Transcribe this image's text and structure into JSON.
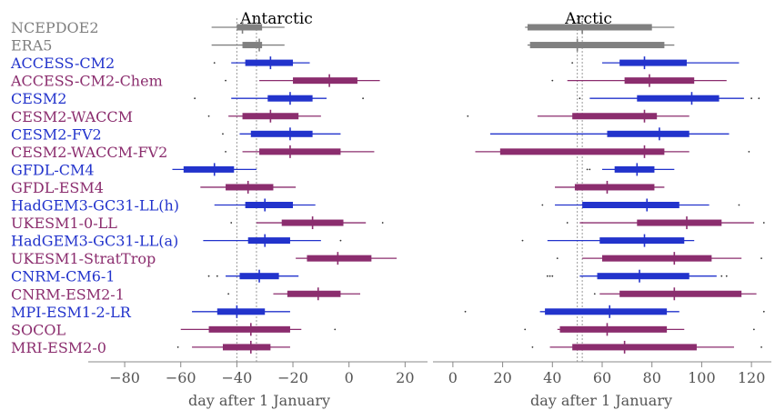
{
  "chart_data": {
    "type": "boxplot",
    "xlabel": "day after 1 January",
    "colors": {
      "reanalysis": "#808080",
      "blue": "#2233cc",
      "purple": "#8b2d6e",
      "axis": "#888888",
      "ref_line": "#999999"
    },
    "models": [
      {
        "name": "NCEPDOE2",
        "group": "reanalysis"
      },
      {
        "name": "ERA5",
        "group": "reanalysis"
      },
      {
        "name": "ACCESS-CM2",
        "group": "blue"
      },
      {
        "name": "ACCESS-CM2-Chem",
        "group": "purple"
      },
      {
        "name": "CESM2",
        "group": "blue"
      },
      {
        "name": "CESM2-WACCM",
        "group": "purple"
      },
      {
        "name": "CESM2-FV2",
        "group": "blue"
      },
      {
        "name": "CESM2-WACCM-FV2",
        "group": "purple"
      },
      {
        "name": "GFDL-CM4",
        "group": "blue"
      },
      {
        "name": "GFDL-ESM4",
        "group": "purple"
      },
      {
        "name": "HadGEM3-GC31-LL(h)",
        "group": "blue"
      },
      {
        "name": "UKESM1-0-LL",
        "group": "purple"
      },
      {
        "name": "HadGEM3-GC31-LL(a)",
        "group": "blue"
      },
      {
        "name": "UKESM1-StratTrop",
        "group": "purple"
      },
      {
        "name": "CNRM-CM6-1",
        "group": "blue"
      },
      {
        "name": "CNRM-ESM2-1",
        "group": "purple"
      },
      {
        "name": "MPI-ESM1-2-LR",
        "group": "blue"
      },
      {
        "name": "SOCOL",
        "group": "purple"
      },
      {
        "name": "MRI-ESM2-0",
        "group": "purple"
      }
    ],
    "panels": [
      {
        "title": "Antarctic",
        "xlim": [
          -93,
          28
        ],
        "xticks": [
          -80,
          -60,
          -40,
          -20,
          0,
          20
        ],
        "ref_lines": [
          -40,
          -33
        ],
        "boxes": [
          {
            "wlo": -49,
            "q1": -40,
            "median": -38,
            "q3": -31,
            "whi": -23,
            "outliers": []
          },
          {
            "wlo": -49,
            "q1": -38,
            "median": -32,
            "q3": -31,
            "whi": -23,
            "outliers": []
          },
          {
            "wlo": -42,
            "q1": -37,
            "median": -28,
            "q3": -20,
            "whi": -14,
            "outliers": [
              -48
            ]
          },
          {
            "wlo": -32,
            "q1": -20,
            "median": -7,
            "q3": 3,
            "whi": 11,
            "outliers": [
              -44
            ]
          },
          {
            "wlo": -42,
            "q1": -29,
            "median": -21,
            "q3": -13,
            "whi": -8,
            "outliers": [
              -55,
              5
            ]
          },
          {
            "wlo": -43,
            "q1": -38,
            "median": -28,
            "q3": -18,
            "whi": -10,
            "outliers": [
              -50
            ]
          },
          {
            "wlo": -39,
            "q1": -35,
            "median": -21,
            "q3": -13,
            "whi": -3,
            "outliers": [
              -45
            ]
          },
          {
            "wlo": -38,
            "q1": -32,
            "median": -21,
            "q3": -3,
            "whi": 9,
            "outliers": [
              -44
            ]
          },
          {
            "wlo": -63,
            "q1": -59,
            "median": -48,
            "q3": -41,
            "whi": -33,
            "outliers": []
          },
          {
            "wlo": -53,
            "q1": -44,
            "median": -36,
            "q3": -27,
            "whi": -19,
            "outliers": []
          },
          {
            "wlo": -48,
            "q1": -37,
            "median": -30,
            "q3": -20,
            "whi": -12,
            "outliers": []
          },
          {
            "wlo": -33,
            "q1": -24,
            "median": -13,
            "q3": -2,
            "whi": 6,
            "outliers": [
              -42,
              12
            ]
          },
          {
            "wlo": -52,
            "q1": -36,
            "median": -30,
            "q3": -21,
            "whi": -10,
            "outliers": [
              -3
            ]
          },
          {
            "wlo": -19,
            "q1": -15,
            "median": -4,
            "q3": 8,
            "whi": 17,
            "outliers": []
          },
          {
            "wlo": -44,
            "q1": -39,
            "median": -32,
            "q3": -25,
            "whi": -18,
            "outliers": [
              -50,
              -47
            ]
          },
          {
            "wlo": -27,
            "q1": -22,
            "median": -11,
            "q3": -3,
            "whi": 4,
            "outliers": [
              -43
            ]
          },
          {
            "wlo": -56,
            "q1": -47,
            "median": -40,
            "q3": -30,
            "whi": -21,
            "outliers": []
          },
          {
            "wlo": -60,
            "q1": -50,
            "median": -35,
            "q3": -21,
            "whi": -17,
            "outliers": [
              -5
            ]
          },
          {
            "wlo": -56,
            "q1": -45,
            "median": -35,
            "q3": -28,
            "whi": -21,
            "outliers": [
              -61
            ]
          }
        ]
      },
      {
        "title": "Arctic",
        "xlim": [
          -8,
          128
        ],
        "xticks": [
          0,
          20,
          40,
          60,
          80,
          100,
          120
        ],
        "ref_lines": [
          50,
          52
        ],
        "boxes": [
          {
            "wlo": 29,
            "q1": 30,
            "median": 52,
            "q3": 80,
            "whi": 89,
            "outliers": []
          },
          {
            "wlo": 30,
            "q1": 31,
            "median": 50,
            "q3": 85,
            "whi": 89,
            "outliers": []
          },
          {
            "wlo": 60,
            "q1": 67,
            "median": 77,
            "q3": 94,
            "whi": 115,
            "outliers": [
              48
            ]
          },
          {
            "wlo": 46,
            "q1": 69,
            "median": 79,
            "q3": 97,
            "whi": 110,
            "outliers": [
              40
            ]
          },
          {
            "wlo": 55,
            "q1": 74,
            "median": 96,
            "q3": 107,
            "whi": 117,
            "outliers": [
              51,
              120,
              123
            ]
          },
          {
            "wlo": 34,
            "q1": 48,
            "median": 77,
            "q3": 82,
            "whi": 95,
            "outliers": [
              6
            ]
          },
          {
            "wlo": 15,
            "q1": 62,
            "median": 83,
            "q3": 95,
            "whi": 111,
            "outliers": []
          },
          {
            "wlo": 9,
            "q1": 19,
            "median": 77,
            "q3": 85,
            "whi": 95,
            "outliers": [
              119
            ]
          },
          {
            "wlo": 60,
            "q1": 65,
            "median": 74,
            "q3": 81,
            "whi": 89,
            "outliers": [
              54,
              55
            ]
          },
          {
            "wlo": 41,
            "q1": 49,
            "median": 62,
            "q3": 81,
            "whi": 85,
            "outliers": []
          },
          {
            "wlo": 41,
            "q1": 52,
            "median": 78,
            "q3": 91,
            "whi": 103,
            "outliers": [
              36,
              115
            ]
          },
          {
            "wlo": 51,
            "q1": 74,
            "median": 94,
            "q3": 108,
            "whi": 121,
            "outliers": [
              46,
              125
            ]
          },
          {
            "wlo": 38,
            "q1": 59,
            "median": 77,
            "q3": 93,
            "whi": 97,
            "outliers": [
              28
            ]
          },
          {
            "wlo": 52,
            "q1": 60,
            "median": 89,
            "q3": 104,
            "whi": 116,
            "outliers": [
              42,
              124
            ]
          },
          {
            "wlo": 51,
            "q1": 58,
            "median": 75,
            "q3": 95,
            "whi": 106,
            "outliers": [
              38,
              39,
              40,
              108,
              110
            ]
          },
          {
            "wlo": 59,
            "q1": 67,
            "median": 89,
            "q3": 116,
            "whi": 122,
            "outliers": [
              57
            ]
          },
          {
            "wlo": 35,
            "q1": 37,
            "median": 63,
            "q3": 86,
            "whi": 91,
            "outliers": [
              5,
              125
            ]
          },
          {
            "wlo": 42,
            "q1": 43,
            "median": 62,
            "q3": 86,
            "whi": 93,
            "outliers": [
              29,
              121
            ]
          },
          {
            "wlo": 39,
            "q1": 48,
            "median": 69,
            "q3": 98,
            "whi": 113,
            "outliers": [
              32,
              124
            ]
          }
        ]
      }
    ]
  }
}
